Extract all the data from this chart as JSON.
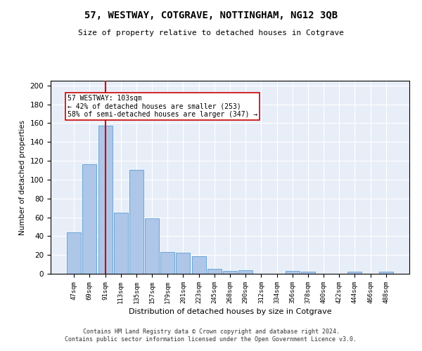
{
  "title": "57, WESTWAY, COTGRAVE, NOTTINGHAM, NG12 3QB",
  "subtitle": "Size of property relative to detached houses in Cotgrave",
  "xlabel": "Distribution of detached houses by size in Cotgrave",
  "ylabel": "Number of detached properties",
  "categories": [
    "47sqm",
    "69sqm",
    "91sqm",
    "113sqm",
    "135sqm",
    "157sqm",
    "179sqm",
    "201sqm",
    "223sqm",
    "245sqm",
    "268sqm",
    "290sqm",
    "312sqm",
    "334sqm",
    "356sqm",
    "378sqm",
    "400sqm",
    "422sqm",
    "444sqm",
    "466sqm",
    "488sqm"
  ],
  "values": [
    44,
    116,
    157,
    65,
    110,
    59,
    23,
    22,
    19,
    5,
    3,
    4,
    0,
    0,
    3,
    2,
    0,
    0,
    2,
    0,
    2
  ],
  "bar_color": "#aec6e8",
  "bar_edge_color": "#5a9fd4",
  "vline_x_index": 2,
  "vline_color": "#cc0000",
  "annotation_text": "57 WESTWAY: 103sqm\n← 42% of detached houses are smaller (253)\n58% of semi-detached houses are larger (347) →",
  "ylim": [
    0,
    205
  ],
  "yticks": [
    0,
    20,
    40,
    60,
    80,
    100,
    120,
    140,
    160,
    180,
    200
  ],
  "bg_color": "#e8eef8",
  "footer_line1": "Contains HM Land Registry data © Crown copyright and database right 2024.",
  "footer_line2": "Contains public sector information licensed under the Open Government Licence v3.0."
}
